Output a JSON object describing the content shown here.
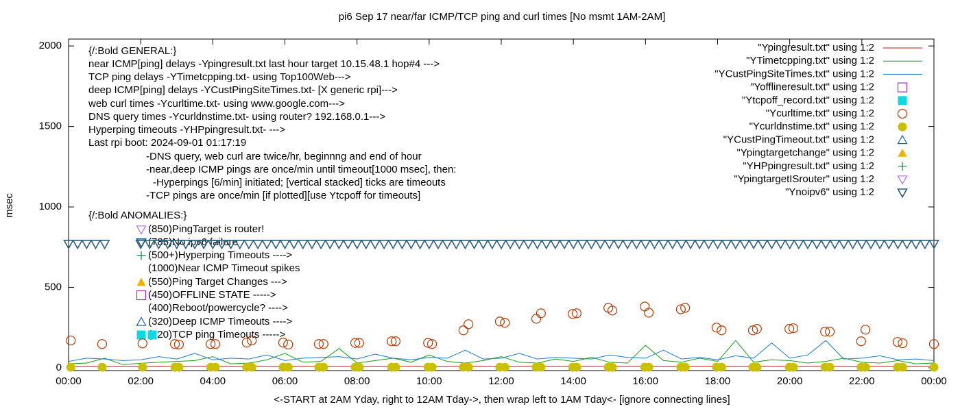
{
  "chart_data": {
    "type": "scatter",
    "title": "pi6 Sep 17  near/far ICMP/TCP ping and curl times [No msmt 1AM-2AM]",
    "y_label": "msec",
    "x_label": "<-START at 2AM Yday, right to 12AM Tday->, then wrap left to 1AM Tday<- [ignore connecting lines]",
    "xlim": [
      0,
      24
    ],
    "xticks": [
      {
        "value": 0,
        "label": "00:00"
      },
      {
        "value": 2,
        "label": "02:00"
      },
      {
        "value": 4,
        "label": "04:00"
      },
      {
        "value": 6,
        "label": "06:00"
      },
      {
        "value": 8,
        "label": "08:00"
      },
      {
        "value": 10,
        "label": "10:00"
      },
      {
        "value": 12,
        "label": "12:00"
      },
      {
        "value": 14,
        "label": "14:00"
      },
      {
        "value": 16,
        "label": "16:00"
      },
      {
        "value": 18,
        "label": "18:00"
      },
      {
        "value": 20,
        "label": "20:00"
      },
      {
        "value": 22,
        "label": "22:00"
      },
      {
        "value": 24,
        "label": "00:00"
      }
    ],
    "ylim": [
      -17,
      2043
    ],
    "yticks": [
      0,
      500,
      1000,
      1500,
      2000
    ],
    "legend_position": "top-right",
    "annotations": [
      "{/:Bold GENERAL:}",
      "near ICMP[ping] delays -Ypingresult.txt last hour target 10.15.48.1 hop#4 --->",
      "TCP ping delays -YTimetcpping.txt- using Top100Web--->",
      "deep ICMP[ping] delays -YCustPingSiteTimes.txt- [X generic rpi]--->",
      "web curl times -Ycurltime.txt- using www.google.com--->",
      "DNS query times -Ycurldnstime.txt- using router? 192.168.0.1--->",
      "Hyperping timeouts -YHPpingresult.txt- --->",
      "Last rpi boot: 2024-09-01 01:17:19",
      "-DNS query, web curl are twice/hr, beginnng and end of hour",
      "-near,deep ICMP pings are once/min until timeout[1000 msec], then:",
      "-Hyperpings [6/min] initiated; [vertical stacked] ticks are timeouts",
      "-TCP pings are once/min [if plotted][use Ytcpoff for timeouts]",
      "{/:Bold ANOMALIES:}",
      "(850)PingTarget is router!",
      "(785)No ipv6 failure",
      "(500+)Hyperping Timeouts ---->",
      "(1000)Near ICMP Timeout spikes",
      "(550)Ping Target Changes --->",
      "(450)OFFLINE STATE ----->",
      "(400)Reboot/powercycle? ---->",
      "(320)Deep ICMP Timeouts ---->",
      "(220)TCP ping Timeouts ----->"
    ],
    "series": [
      {
        "name": "\"Ypingresult.txt\" using 1:2",
        "color": "#d01010",
        "marker": "line",
        "x": [
          0,
          0.5,
          1,
          1.5,
          2,
          2.5,
          3,
          3.5,
          4,
          4.5,
          5,
          5.5,
          6,
          6.5,
          7,
          7.5,
          8,
          8.5,
          9,
          9.5,
          10,
          10.5,
          11,
          11.5,
          12,
          12.5,
          13,
          13.5,
          14,
          14.5,
          15,
          15.5,
          16,
          16.5,
          17,
          17.5,
          18,
          18.5,
          19,
          19.5,
          20,
          20.5,
          21,
          21.5,
          22,
          22.5,
          23,
          23.5,
          24
        ],
        "values": [
          8,
          8,
          9,
          8,
          7,
          9,
          8,
          8,
          10,
          8,
          9,
          8,
          8,
          9,
          8,
          8,
          9,
          8,
          8,
          9,
          8,
          8,
          10,
          9,
          8,
          8,
          9,
          8,
          8,
          9,
          8,
          8,
          9,
          8,
          8,
          9,
          10,
          8,
          8,
          9,
          8,
          8,
          9,
          8,
          8,
          9,
          8,
          8,
          9
        ]
      },
      {
        "name": "\"YTimetcpping.txt\" using 1:2",
        "color": "#10a010",
        "marker": "line",
        "x": [
          0,
          0.5,
          1,
          1.5,
          2,
          2.5,
          3,
          3.5,
          4,
          4.5,
          5,
          5.5,
          6,
          6.5,
          7,
          7.5,
          8,
          8.5,
          9,
          9.5,
          10,
          10.5,
          11,
          11.5,
          12,
          12.5,
          13,
          13.5,
          14,
          14.5,
          15,
          15.5,
          16,
          16.5,
          17,
          17.5,
          18,
          18.5,
          19,
          19.5,
          20,
          20.5,
          21,
          21.5,
          22,
          22.5,
          23,
          23.5,
          24
        ],
        "values": [
          25,
          30,
          60,
          20,
          28,
          35,
          40,
          45,
          70,
          25,
          30,
          50,
          90,
          35,
          40,
          120,
          30,
          45,
          60,
          35,
          80,
          40,
          30,
          45,
          70,
          35,
          30,
          55,
          40,
          65,
          35,
          30,
          140,
          45,
          35,
          60,
          40,
          170,
          35,
          50,
          45,
          30,
          40,
          60,
          35,
          30,
          45,
          25,
          30
        ]
      },
      {
        "name": "\"YCustPingSiteTimes.txt\" using 1:2",
        "color": "#1a78d0",
        "marker": "line",
        "x": [
          0,
          0.5,
          1,
          1.5,
          2,
          2.5,
          3,
          3.5,
          4,
          4.5,
          5,
          5.5,
          6,
          6.5,
          7,
          7.5,
          8,
          8.5,
          9,
          9.5,
          10,
          10.5,
          11,
          11.5,
          12,
          12.5,
          13,
          13.5,
          14,
          14.5,
          15,
          15.5,
          16,
          16.5,
          17,
          17.5,
          18,
          18.5,
          19,
          19.5,
          20,
          20.5,
          21,
          21.5,
          22,
          22.5,
          23,
          23.5,
          24
        ],
        "values": [
          40,
          60,
          55,
          45,
          50,
          70,
          55,
          90,
          50,
          60,
          55,
          80,
          45,
          60,
          65,
          70,
          55,
          85,
          60,
          50,
          65,
          60,
          110,
          55,
          60,
          90,
          55,
          65,
          60,
          55,
          80,
          65,
          60,
          110,
          55,
          65,
          50,
          75,
          60,
          155,
          60,
          80,
          170,
          55,
          60,
          75,
          50,
          55,
          45
        ]
      },
      {
        "name": "\"Yofflineresult.txt\" using 1:2",
        "color": "#9a2fc0",
        "marker": "square-open",
        "x": [],
        "values": []
      },
      {
        "name": "\"Ytcpoff_record.txt\" using 1:2",
        "color": "#10d8e0",
        "marker": "square",
        "x": [],
        "values": []
      },
      {
        "name": "\"Ycurltime.txt\" using 1:2",
        "color": "#b83a00",
        "marker": "circle-open",
        "x": [
          0.06,
          0.93,
          2.05,
          2.95,
          3.06,
          3.94,
          4.07,
          4.94,
          5.08,
          5.95,
          6.09,
          6.94,
          7.07,
          7.95,
          8.06,
          8.96,
          9.07,
          9.97,
          10.08,
          10.95,
          11.09,
          11.96,
          12.1,
          12.97,
          13.1,
          13.98,
          14.09,
          14.97,
          15.08,
          15.98,
          16.09,
          16.98,
          17.1,
          17.97,
          18.11,
          18.98,
          19.09,
          19.99,
          20.1,
          20.98,
          21.11,
          21.98,
          22.1,
          22.99,
          23.13,
          24
        ],
        "values": [
          170,
          148,
          152,
          148,
          145,
          148,
          148,
          157,
          170,
          157,
          145,
          148,
          148,
          155,
          155,
          165,
          165,
          155,
          148,
          233,
          271,
          288,
          280,
          305,
          339,
          335,
          339,
          373,
          356,
          381,
          343,
          364,
          373,
          250,
          233,
          233,
          242,
          242,
          246,
          225,
          225,
          165,
          237,
          161,
          153,
          148
        ]
      },
      {
        "name": "\"Ycurldnstime.txt\" using 1:2",
        "color": "#c8c000",
        "marker": "circle",
        "x": [
          0.06,
          0.93,
          2.05,
          2.95,
          3.06,
          3.94,
          4.07,
          4.94,
          5.08,
          5.95,
          6.09,
          6.94,
          7.07,
          7.95,
          8.06,
          8.96,
          9.07,
          9.97,
          10.08,
          10.95,
          11.09,
          11.96,
          12.1,
          12.97,
          13.1,
          13.98,
          14.09,
          14.97,
          15.08,
          15.98,
          16.09,
          16.98,
          17.1,
          17.97,
          18.11,
          18.98,
          19.09,
          19.99,
          20.1,
          20.98,
          21.11,
          21.98,
          22.1,
          22.99,
          23.13,
          24
        ],
        "values": [
          4,
          4,
          4,
          4,
          4,
          4,
          4,
          4,
          4,
          4,
          4,
          4,
          4,
          4,
          4,
          4,
          4,
          4,
          4,
          4,
          4,
          4,
          4,
          4,
          4,
          4,
          4,
          4,
          4,
          4,
          4,
          4,
          4,
          4,
          4,
          4,
          4,
          4,
          4,
          4,
          4,
          4,
          4,
          4,
          4,
          4
        ]
      },
      {
        "name": "\"YCustPingTimeout.txt\" using 1:2",
        "color": "#1a60c0",
        "marker": "triangle-open",
        "x": [],
        "values": []
      },
      {
        "name": "\"Ypingtargetchange\" using 1:2",
        "color": "#f0b000",
        "marker": "triangle",
        "x": [],
        "values": []
      },
      {
        "name": "\"YHPpingresult.txt\" using 1:2",
        "color": "#108040",
        "marker": "plus",
        "x": [],
        "values": []
      },
      {
        "name": "\"YpingtargetISrouter\" using 1:2",
        "color": "#b070e0",
        "marker": "triangle-down-open",
        "x": [],
        "values": []
      },
      {
        "name": "\"Ynoipv6\" using 1:2",
        "color": "#2a5d80",
        "marker": "triangle-down",
        "x": [
          0,
          0.25,
          0.5,
          0.75,
          1,
          2,
          2.25,
          2.5,
          2.75,
          3,
          3.25,
          3.5,
          3.75,
          4,
          4.25,
          4.5,
          4.75,
          5,
          5.25,
          5.5,
          5.75,
          6,
          6.25,
          6.5,
          6.75,
          7,
          7.25,
          7.5,
          7.75,
          8,
          8.25,
          8.5,
          8.75,
          9,
          9.25,
          9.5,
          9.75,
          10,
          10.25,
          10.5,
          10.75,
          11,
          11.25,
          11.5,
          11.75,
          12,
          12.25,
          12.5,
          12.75,
          13,
          13.25,
          13.5,
          13.75,
          14,
          14.25,
          14.5,
          14.75,
          15,
          15.25,
          15.5,
          15.75,
          16,
          16.25,
          16.5,
          16.75,
          17,
          17.25,
          17.5,
          17.75,
          18,
          18.25,
          18.5,
          18.75,
          19,
          19.25,
          19.5,
          19.75,
          20,
          20.25,
          20.5,
          20.75,
          21,
          21.25,
          21.5,
          21.75,
          22,
          22.25,
          22.5,
          22.75,
          23,
          23.25,
          23.5,
          23.75,
          24
        ],
        "values": [
          770,
          770,
          770,
          770,
          770,
          770,
          770,
          770,
          770,
          770,
          770,
          770,
          770,
          770,
          770,
          770,
          770,
          770,
          770,
          770,
          770,
          770,
          770,
          770,
          770,
          770,
          770,
          770,
          770,
          770,
          770,
          770,
          770,
          770,
          770,
          770,
          770,
          770,
          770,
          770,
          770,
          770,
          770,
          770,
          770,
          770,
          770,
          770,
          770,
          770,
          770,
          770,
          770,
          770,
          770,
          770,
          770,
          770,
          770,
          770,
          770,
          770,
          770,
          770,
          770,
          770,
          770,
          770,
          770,
          770,
          770,
          770,
          770,
          770,
          770,
          770,
          770,
          770,
          770,
          770,
          770,
          770,
          770,
          770,
          770,
          770,
          770,
          770,
          770,
          770,
          770,
          770,
          770,
          770
        ]
      }
    ]
  }
}
